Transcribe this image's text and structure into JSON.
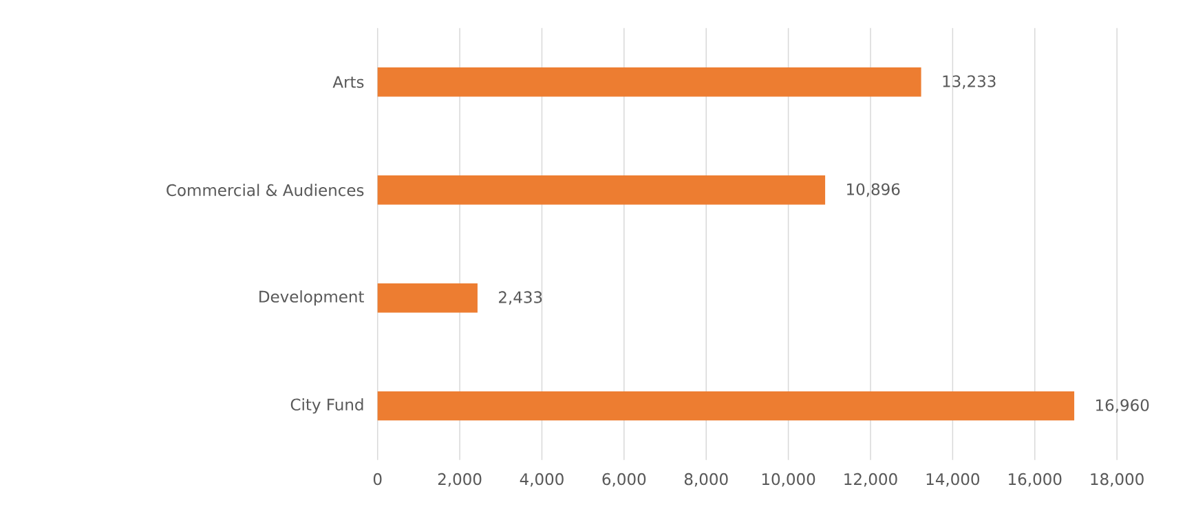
{
  "chart_data": {
    "type": "bar",
    "orientation": "horizontal",
    "categories": [
      "Arts",
      "Commercial & Audiences",
      "Development",
      "City Fund"
    ],
    "values": [
      13233,
      10896,
      2433,
      16960
    ],
    "value_labels": [
      "13,233",
      "10,896",
      "2,433",
      "16,960"
    ],
    "color": "#ed7d31",
    "xlim": [
      0,
      18000
    ],
    "xticks": [
      0,
      {
        "value": 2000,
        "label": "2,000"
      },
      {
        "value": 4000,
        "label": "4,000"
      },
      {
        "value": 6000,
        "label": "6,000"
      },
      {
        "value": 8000,
        "label": "8,000"
      },
      {
        "value": 10000,
        "label": "10,000"
      },
      {
        "value": 12000,
        "label": "12,000"
      },
      {
        "value": 14000,
        "label": "14,000"
      },
      {
        "value": 16000,
        "label": "16,000"
      },
      {
        "value": 18000,
        "label": "18,000"
      }
    ],
    "grid": "x"
  }
}
